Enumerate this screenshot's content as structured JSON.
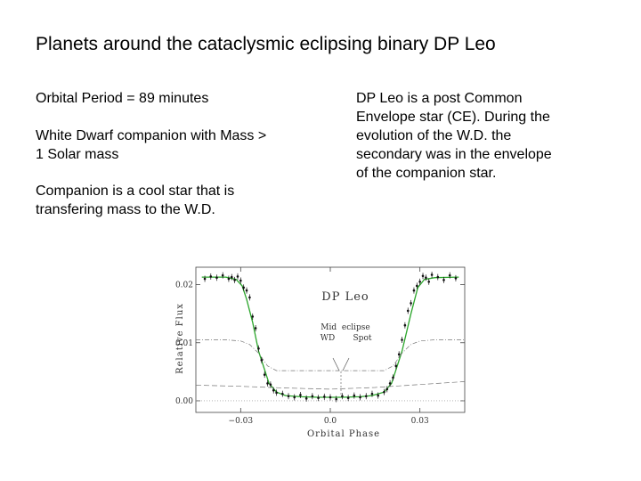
{
  "slide": {
    "title": "Planets around the cataclysmic eclipsing binary DP Leo",
    "left_points": [
      "Orbital Period = 89 minutes",
      "White Dwarf companion with Mass > 1 Solar mass",
      "Companion is a cool star that is transfering mass to the W.D."
    ],
    "right_text": "DP Leo is a post Common Envelope star (CE). During the evolution of the W.D. the secondary was in the envelope of the companion star."
  },
  "chart_data": {
    "type": "line",
    "title": "DP Leo",
    "xlabel": "Orbital Phase",
    "ylabel": "Relative Flux",
    "xlim": [
      -0.045,
      0.045
    ],
    "ylim": [
      -0.002,
      0.023
    ],
    "x_ticks": [
      -0.03,
      0.0,
      0.03
    ],
    "x_tick_labels": [
      "−0.03",
      "0.0",
      "0.03"
    ],
    "y_ticks": [
      0.0,
      0.01,
      0.02
    ],
    "y_tick_labels": [
      "0.00",
      "0.01",
      "0.02"
    ],
    "annotations": [
      "Mid  eclipse",
      "WD",
      "Spot"
    ],
    "model_color": "#2aa52a",
    "series": [
      {
        "style": "model-fit",
        "x": [
          -0.043,
          -0.035,
          -0.0315,
          -0.0295,
          -0.028,
          -0.026,
          -0.024,
          -0.0205,
          -0.018,
          -0.015,
          -0.01,
          -0.004,
          0.0,
          0.004,
          0.01,
          0.014,
          0.018,
          0.0205,
          0.024,
          0.027,
          0.0293,
          0.0315,
          0.035,
          0.043
        ],
        "y": [
          0.0213,
          0.0213,
          0.0209,
          0.0198,
          0.0175,
          0.0135,
          0.0085,
          0.003,
          0.0015,
          0.0009,
          0.0007,
          0.0006,
          0.0006,
          0.0006,
          0.0007,
          0.0009,
          0.0015,
          0.003,
          0.0085,
          0.015,
          0.0195,
          0.0209,
          0.0212,
          0.0213
        ]
      },
      {
        "style": "component-dash-dot",
        "x": [
          -0.045,
          -0.035,
          -0.03,
          -0.027,
          -0.024,
          -0.021,
          -0.018,
          -0.01,
          0.0,
          0.01,
          0.018,
          0.021,
          0.024,
          0.027,
          0.03,
          0.035,
          0.045
        ],
        "y": [
          0.0105,
          0.0105,
          0.0103,
          0.0097,
          0.0082,
          0.006,
          0.0052,
          0.0052,
          0.0052,
          0.0052,
          0.0052,
          0.006,
          0.0082,
          0.0097,
          0.0103,
          0.0105,
          0.0105
        ]
      },
      {
        "style": "component-dashed",
        "x": [
          -0.045,
          -0.03,
          -0.015,
          0.0,
          0.015,
          0.03,
          0.045
        ],
        "y": [
          0.0027,
          0.0025,
          0.0022,
          0.002,
          0.0023,
          0.0028,
          0.0033
        ]
      },
      {
        "style": "data-points",
        "x": [
          -0.042,
          -0.04,
          -0.038,
          -0.036,
          -0.034,
          -0.033,
          -0.032,
          -0.031,
          -0.03,
          -0.029,
          -0.028,
          -0.027,
          -0.026,
          -0.025,
          -0.024,
          -0.023,
          -0.022,
          -0.021,
          -0.02,
          -0.019,
          -0.018,
          -0.016,
          -0.014,
          -0.012,
          -0.01,
          -0.008,
          -0.006,
          -0.004,
          -0.002,
          0.0,
          0.002,
          0.004,
          0.006,
          0.008,
          0.01,
          0.012,
          0.014,
          0.016,
          0.018,
          0.019,
          0.02,
          0.021,
          0.022,
          0.023,
          0.024,
          0.025,
          0.026,
          0.027,
          0.028,
          0.029,
          0.03,
          0.031,
          0.032,
          0.033,
          0.034,
          0.036,
          0.038,
          0.04,
          0.042
        ],
        "y": [
          0.021,
          0.0214,
          0.0212,
          0.0216,
          0.021,
          0.0213,
          0.0208,
          0.0214,
          0.0207,
          0.0195,
          0.019,
          0.0178,
          0.0145,
          0.0125,
          0.009,
          0.007,
          0.0045,
          0.003,
          0.0028,
          0.0018,
          0.0014,
          0.0012,
          0.0008,
          0.0006,
          0.001,
          0.0004,
          0.0008,
          0.0005,
          0.0007,
          0.0006,
          0.0003,
          0.0008,
          0.0005,
          0.0009,
          0.0006,
          0.0008,
          0.0012,
          0.0009,
          0.0015,
          0.002,
          0.003,
          0.004,
          0.006,
          0.008,
          0.0105,
          0.013,
          0.0155,
          0.0168,
          0.019,
          0.0198,
          0.0205,
          0.0215,
          0.0212,
          0.0205,
          0.0217,
          0.0213,
          0.0208,
          0.0216,
          0.0211
        ]
      }
    ]
  }
}
